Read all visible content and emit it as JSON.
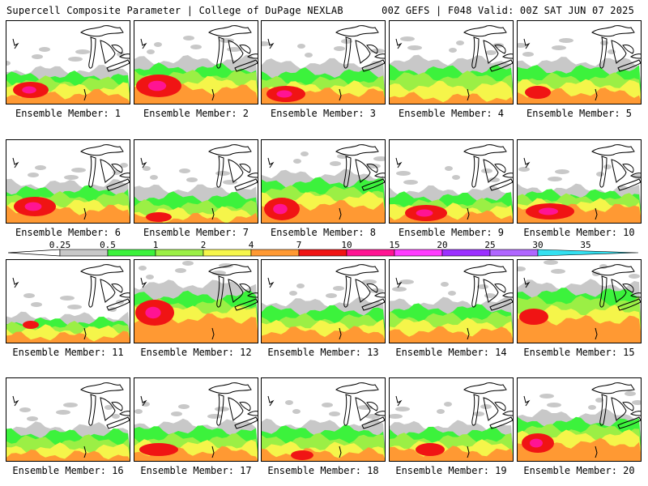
{
  "header": {
    "left": "Supercell Composite Parameter | College of DuPage NEXLAB",
    "right": "00Z GEFS | F048 Valid: 00Z SAT JUN 07 2025"
  },
  "colorbar": {
    "levels": [
      "0.25",
      "0.5",
      "1",
      "2",
      "4",
      "7",
      "10",
      "15",
      "20",
      "25",
      "30",
      "35"
    ],
    "colors": [
      "#c8c8c8",
      "#3cf23c",
      "#9bef45",
      "#f5f54a",
      "#ff9933",
      "#f01414",
      "#ff1493",
      "#ff3cff",
      "#9b30ff",
      "#b066ff",
      "#33e0f0"
    ]
  },
  "panels": [
    {
      "label": "Ensemble Member: 1"
    },
    {
      "label": "Ensemble Member: 2"
    },
    {
      "label": "Ensemble Member: 3"
    },
    {
      "label": "Ensemble Member: 4"
    },
    {
      "label": "Ensemble Member: 5"
    },
    {
      "label": "Ensemble Member: 6"
    },
    {
      "label": "Ensemble Member: 7"
    },
    {
      "label": "Ensemble Member: 8"
    },
    {
      "label": "Ensemble Member: 9"
    },
    {
      "label": "Ensemble Member: 10"
    },
    {
      "label": "Ensemble Member: 11"
    },
    {
      "label": "Ensemble Member: 12"
    },
    {
      "label": "Ensemble Member: 13"
    },
    {
      "label": "Ensemble Member: 14"
    },
    {
      "label": "Ensemble Member: 15"
    },
    {
      "label": "Ensemble Member: 16"
    },
    {
      "label": "Ensemble Member: 17"
    },
    {
      "label": "Ensemble Member: 18"
    },
    {
      "label": "Ensemble Member: 19"
    },
    {
      "label": "Ensemble Member: 20"
    }
  ]
}
